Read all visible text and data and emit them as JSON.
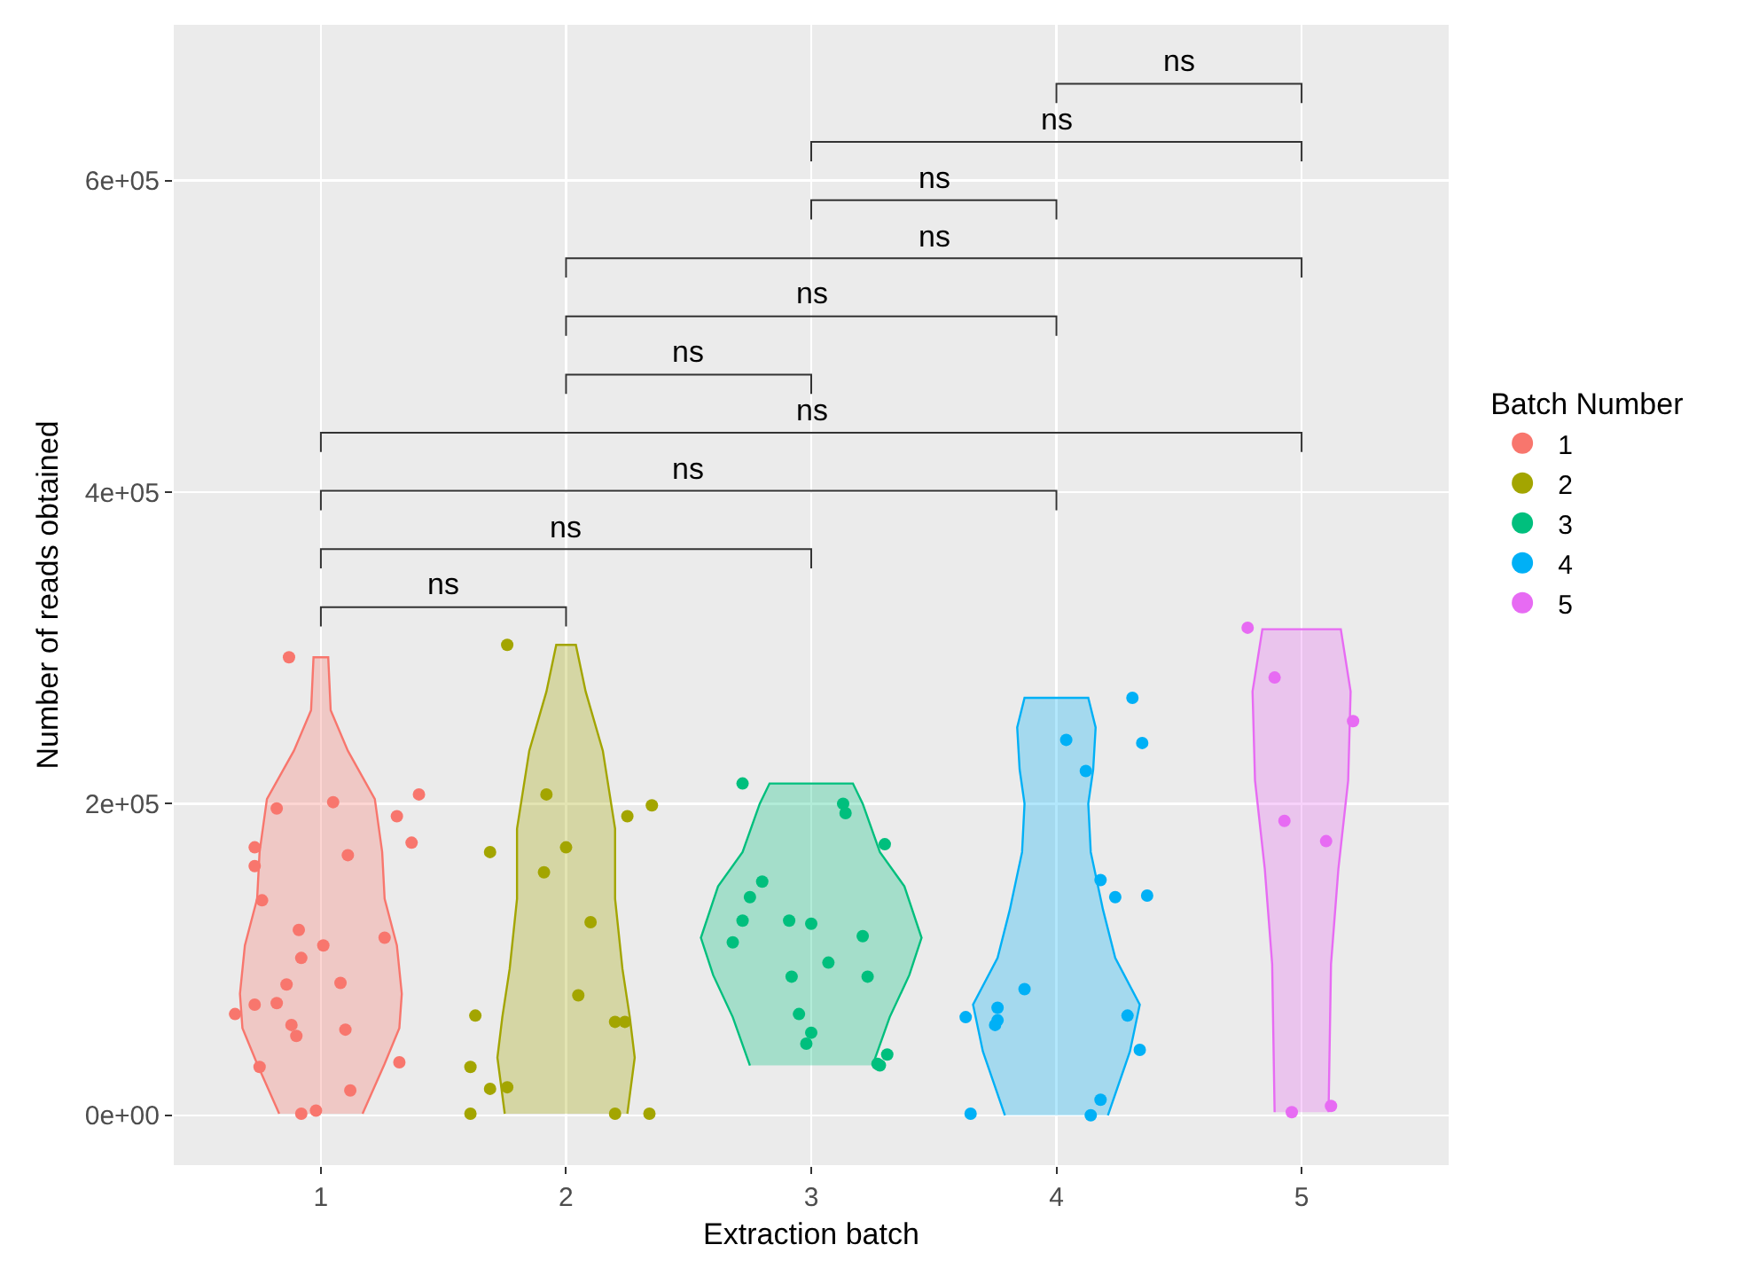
{
  "chart_data": {
    "type": "scatter",
    "xlabel": "Extraction batch",
    "ylabel": "Number of reads obtained",
    "legend_title": "Batch Number",
    "xlim": [
      0.4,
      5.6
    ],
    "xticks": [
      1,
      2,
      3,
      4,
      5
    ],
    "ylim": [
      -32000,
      700000
    ],
    "yticks": [
      {
        "value": 0,
        "label": "0e+00"
      },
      {
        "value": 200000,
        "label": "2e+05"
      },
      {
        "value": 400000,
        "label": "4e+05"
      },
      {
        "value": 600000,
        "label": "6e+05"
      }
    ],
    "grid": true,
    "legend": "right",
    "marker": "circle",
    "series": [
      {
        "type": "area",
        "marker": "none",
        "color": "#f8766d",
        "x": [
          1.17,
          1.26,
          1.32,
          1.33,
          1.31,
          1.26,
          1.25,
          1.22,
          1.11,
          1.04,
          1.03,
          0.97,
          0.96,
          0.89,
          0.78,
          0.75,
          0.74,
          0.69,
          0.67,
          0.68,
          0.74,
          0.83
        ],
        "values": [
          1000,
          33000,
          56000,
          78000,
          109000,
          139000,
          169000,
          203000,
          234000,
          260000,
          294000,
          294000,
          260000,
          234000,
          203000,
          169000,
          139000,
          109000,
          78000,
          56000,
          33000,
          1000
        ]
      },
      {
        "type": "area",
        "marker": "none",
        "color": "#a3a500",
        "x": [
          2.25,
          2.28,
          2.26,
          2.23,
          2.2,
          2.2,
          2.15,
          2.08,
          2.04,
          1.96,
          1.92,
          1.85,
          1.8,
          1.8,
          1.77,
          1.74,
          1.72,
          1.75
        ],
        "values": [
          1000,
          37000,
          63000,
          94000,
          139000,
          184000,
          234000,
          272000,
          302000,
          302000,
          272000,
          234000,
          184000,
          139000,
          94000,
          63000,
          37000,
          1000
        ]
      },
      {
        "type": "area",
        "marker": "none",
        "color": "#00bf7d",
        "x": [
          3.25,
          3.32,
          3.4,
          3.45,
          3.38,
          3.28,
          3.21,
          3.17,
          2.83,
          2.79,
          2.72,
          2.62,
          2.55,
          2.6,
          2.68,
          2.75
        ],
        "values": [
          32000,
          63000,
          90000,
          114000,
          147000,
          169000,
          200000,
          213000,
          213000,
          200000,
          169000,
          147000,
          114000,
          90000,
          63000,
          32000
        ]
      },
      {
        "type": "area",
        "marker": "none",
        "color": "#00b0f6",
        "x": [
          4.21,
          4.3,
          4.34,
          4.24,
          4.19,
          4.14,
          4.13,
          4.15,
          4.16,
          4.13,
          3.87,
          3.84,
          3.85,
          3.87,
          3.86,
          3.81,
          3.76,
          3.66,
          3.7,
          3.79
        ],
        "values": [
          0,
          41000,
          71000,
          101000,
          132000,
          169000,
          200000,
          222000,
          249000,
          268000,
          268000,
          249000,
          222000,
          200000,
          169000,
          132000,
          101000,
          71000,
          41000,
          0
        ]
      },
      {
        "type": "area",
        "marker": "none",
        "color": "#e76bf3",
        "x": [
          5.11,
          5.12,
          5.15,
          5.19,
          5.2,
          5.16,
          4.84,
          4.8,
          4.81,
          4.85,
          4.88,
          4.89
        ],
        "values": [
          2000,
          97000,
          158000,
          215000,
          272000,
          312000,
          312000,
          272000,
          215000,
          158000,
          97000,
          2000
        ]
      },
      {
        "name": "1",
        "color": "#f8766d",
        "x": [
          0.87,
          1.05,
          0.82,
          1.4,
          1.31,
          1.37,
          1.11,
          0.73,
          0.73,
          0.76,
          0.91,
          1.01,
          0.92,
          1.26,
          0.86,
          1.08,
          0.73,
          0.82,
          0.65,
          0.88,
          0.9,
          1.1,
          0.75,
          1.32,
          1.12,
          0.92,
          0.98
        ],
        "values": [
          294000,
          201000,
          197000,
          206000,
          192000,
          175000,
          167000,
          172000,
          160000,
          138000,
          119000,
          109000,
          101000,
          114000,
          84000,
          85000,
          71000,
          72000,
          65000,
          58000,
          51000,
          55000,
          31000,
          34000,
          16000,
          1000,
          3000
        ]
      },
      {
        "name": "2",
        "color": "#a3a500",
        "x": [
          1.76,
          1.92,
          2.35,
          2.25,
          1.69,
          2.0,
          1.91,
          2.1,
          2.05,
          1.63,
          2.2,
          2.24,
          1.61,
          1.69,
          1.76,
          1.61,
          2.2,
          2.34
        ],
        "values": [
          302000,
          206000,
          199000,
          192000,
          169000,
          172000,
          156000,
          124000,
          77000,
          64000,
          60000,
          60000,
          31000,
          17000,
          18000,
          1000,
          1000,
          1000
        ]
      },
      {
        "name": "3",
        "color": "#00bf7d",
        "x": [
          2.72,
          3.13,
          3.14,
          3.3,
          2.8,
          2.75,
          2.72,
          2.91,
          3.0,
          2.68,
          3.21,
          3.07,
          2.92,
          3.23,
          2.95,
          3.0,
          2.98,
          3.27,
          3.31,
          3.28
        ],
        "values": [
          213000,
          200000,
          194000,
          174000,
          150000,
          140000,
          125000,
          125000,
          123000,
          111000,
          115000,
          98000,
          89000,
          89000,
          65000,
          53000,
          46000,
          33000,
          39000,
          32000
        ]
      },
      {
        "name": "4",
        "color": "#00b0f6",
        "x": [
          3.63,
          3.65,
          3.76,
          3.76,
          3.75,
          3.87,
          4.04,
          4.12,
          4.31,
          4.35,
          4.18,
          4.24,
          4.37,
          4.29,
          4.34,
          4.18,
          4.14
        ],
        "values": [
          63000,
          1000,
          69000,
          61000,
          58000,
          81000,
          241000,
          221000,
          268000,
          239000,
          151000,
          140000,
          141000,
          64000,
          42000,
          10000,
          0
        ]
      },
      {
        "name": "5",
        "color": "#e76bf3",
        "x": [
          4.78,
          4.89,
          5.21,
          4.93,
          5.1,
          4.96,
          5.12
        ],
        "values": [
          313000,
          281000,
          253000,
          189000,
          176000,
          2000,
          6000
        ]
      }
    ],
    "annotations": [
      "ns",
      "ns",
      "ns",
      "ns",
      "ns",
      "ns",
      "ns",
      "ns",
      "ns",
      "ns"
    ]
  }
}
